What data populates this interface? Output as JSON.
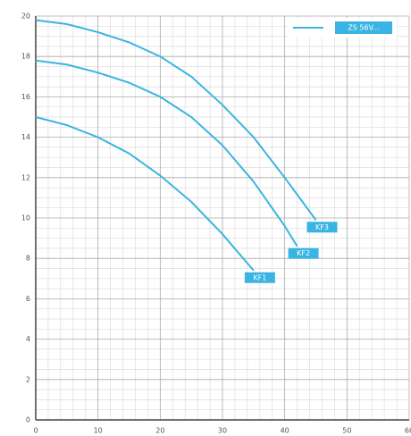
{
  "chart_data": {
    "type": "line",
    "legend_label": "ZS 56V...",
    "color": "#3ab4e2",
    "xlim": [
      0,
      60
    ],
    "xticks": [
      0,
      10,
      20,
      30,
      40,
      50,
      60
    ],
    "ylim": [
      0,
      20
    ],
    "yticks": [
      0,
      2,
      4,
      6,
      8,
      10,
      12,
      14,
      16,
      18,
      20
    ],
    "grid": true,
    "series": [
      {
        "name": "KF3",
        "x": [
          0,
          5,
          10,
          15,
          20,
          25,
          30,
          35,
          40,
          45
        ],
        "values": [
          19.8,
          19.6,
          19.2,
          18.7,
          18.0,
          17.0,
          15.6,
          14.0,
          12.0,
          9.9
        ]
      },
      {
        "name": "KF2",
        "x": [
          0,
          5,
          10,
          15,
          20,
          25,
          30,
          35,
          40,
          42
        ],
        "values": [
          17.8,
          17.6,
          17.2,
          16.7,
          16.0,
          15.0,
          13.6,
          11.8,
          9.6,
          8.6
        ]
      },
      {
        "name": "KF1",
        "x": [
          0,
          5,
          10,
          15,
          20,
          25,
          30,
          35
        ],
        "values": [
          15.0,
          14.6,
          14.0,
          13.2,
          12.1,
          10.8,
          9.2,
          7.4
        ]
      }
    ]
  }
}
